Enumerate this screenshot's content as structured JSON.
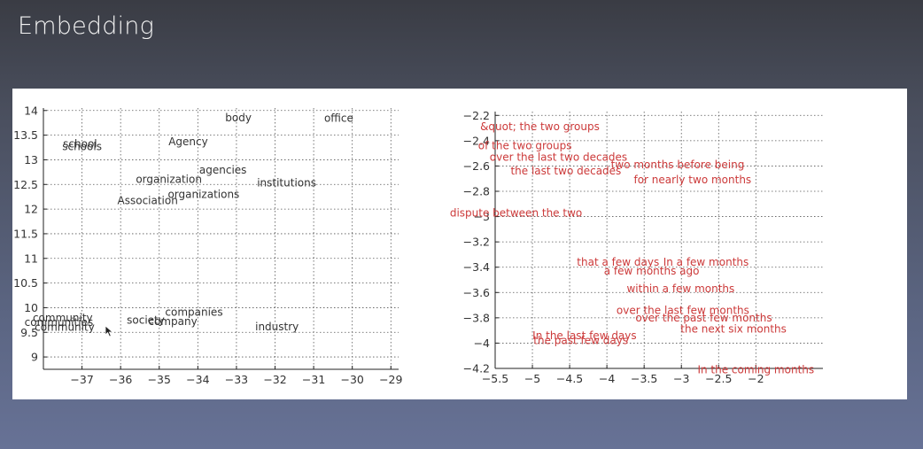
{
  "slide": {
    "title": "Embedding"
  },
  "chart_data": [
    {
      "type": "scatter",
      "title": "",
      "xlabel": "",
      "ylabel": "",
      "grid": true,
      "text_color": "#333333",
      "xlim": [
        -38.0,
        -28.8
      ],
      "ylim": [
        8.75,
        14.05
      ],
      "xticks": [
        -37,
        -36,
        -35,
        -34,
        -33,
        -32,
        -31,
        -30,
        -29
      ],
      "yticks": [
        9,
        9.5,
        10,
        10.5,
        11,
        11.5,
        12,
        12.5,
        13,
        13.5,
        14
      ],
      "xtick_labels": [
        "−37",
        "−36",
        "−35",
        "−34",
        "−33",
        "−32",
        "−31",
        "−30",
        "−29"
      ],
      "ytick_labels": [
        "9",
        "9.5",
        "10",
        "10.5",
        "11",
        "11.5",
        "12",
        "12.5",
        "13",
        "13.5",
        "14"
      ],
      "points": [
        {
          "label": "body",
          "x": -32.95,
          "y": 13.85
        },
        {
          "label": "office",
          "x": -30.35,
          "y": 13.84
        },
        {
          "label": "school",
          "x": -37.05,
          "y": 13.32
        },
        {
          "label": "schools",
          "x": -37.0,
          "y": 13.27
        },
        {
          "label": "Agency",
          "x": -34.25,
          "y": 13.37
        },
        {
          "label": "agencies",
          "x": -33.35,
          "y": 12.79
        },
        {
          "label": "organization",
          "x": -34.75,
          "y": 12.6
        },
        {
          "label": "institutions",
          "x": -31.7,
          "y": 12.53
        },
        {
          "label": "organizations",
          "x": -33.85,
          "y": 12.3
        },
        {
          "label": "Association",
          "x": -35.3,
          "y": 12.17
        },
        {
          "label": "companies",
          "x": -34.1,
          "y": 9.91
        },
        {
          "label": "community",
          "x": -37.5,
          "y": 9.79
        },
        {
          "label": "communities",
          "x": -37.6,
          "y": 9.7
        },
        {
          "label": "community",
          "x": -37.45,
          "y": 9.6
        },
        {
          "label": "society",
          "x": -35.35,
          "y": 9.75
        },
        {
          "label": "company",
          "x": -34.65,
          "y": 9.72
        },
        {
          "label": "industry",
          "x": -31.95,
          "y": 9.61
        }
      ]
    },
    {
      "type": "scatter",
      "title": "",
      "xlabel": "",
      "ylabel": "",
      "grid": true,
      "text_color": "#cc3a3a",
      "xlim": [
        -5.5,
        -1.1
      ],
      "ylim": [
        -4.2,
        -2.17
      ],
      "xticks": [
        -5.5,
        -5,
        -4.5,
        -4,
        -3.5,
        -3,
        -2.5,
        -2
      ],
      "yticks": [
        -2.2,
        -2.4,
        -2.6,
        -2.8,
        -3,
        -3.2,
        -3.4,
        -3.6,
        -3.8,
        -4,
        -4.2
      ],
      "xtick_labels": [
        "−5.5",
        "−5",
        "−4.5",
        "−4",
        "−3.5",
        "−3",
        "−2.5",
        "−2"
      ],
      "ytick_labels": [
        "−2.2",
        "−2.4",
        "−2.6",
        "−2.8",
        "−3",
        "−3.2",
        "−3.4",
        "−3.6",
        "−3.8",
        "−4",
        "−4.2"
      ],
      "points": [
        {
          "label": "&quot; the two groups",
          "x": -4.9,
          "y": -2.29
        },
        {
          "label": "of the two groups",
          "x": -5.1,
          "y": -2.44
        },
        {
          "label": "over the last two decades",
          "x": -4.65,
          "y": -2.53
        },
        {
          "label": "the last two decades",
          "x": -4.55,
          "y": -2.64
        },
        {
          "label": "two months before being",
          "x": -3.05,
          "y": -2.59
        },
        {
          "label": "for nearly two months",
          "x": -2.85,
          "y": -2.71
        },
        {
          "label": "dispute between the two",
          "x": -5.22,
          "y": -2.97
        },
        {
          "label": "that a few days",
          "x": -3.85,
          "y": -3.36
        },
        {
          "label": "In a few months",
          "x": -2.67,
          "y": -3.36
        },
        {
          "label": "a few months ago",
          "x": -3.4,
          "y": -3.43
        },
        {
          "label": "within a few months",
          "x": -3.01,
          "y": -3.57
        },
        {
          "label": "over the last few months",
          "x": -2.98,
          "y": -3.74
        },
        {
          "label": "over the past few months",
          "x": -2.7,
          "y": -3.8
        },
        {
          "label": "the next six months",
          "x": -2.3,
          "y": -3.89
        },
        {
          "label": "In the last few days",
          "x": -4.3,
          "y": -3.94
        },
        {
          "label": "the past few days",
          "x": -4.35,
          "y": -3.98
        },
        {
          "label": "In the coming months",
          "x": -2.0,
          "y": -4.21
        }
      ]
    }
  ]
}
